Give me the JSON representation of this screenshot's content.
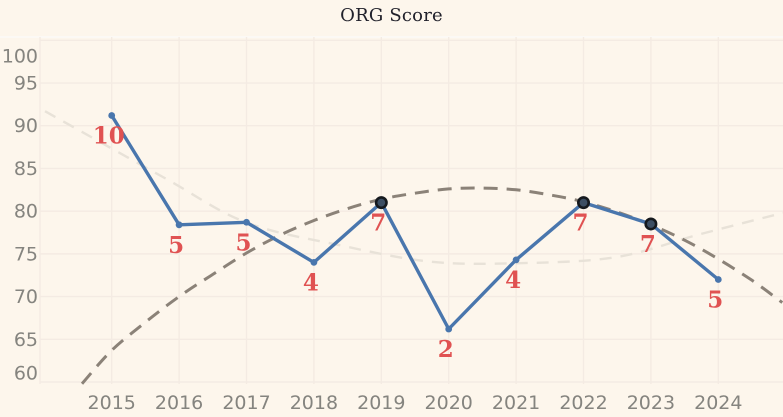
{
  "app": {
    "background_color": "#fdf6ec",
    "plot_border_color": "#fcf9f5",
    "grid_color": "#f4ebe3"
  },
  "header": {
    "title": "ORG Score",
    "title_color": "#21212b"
  },
  "chart_data": {
    "type": "line",
    "title": "ORG Score",
    "xlabel": "",
    "ylabel": "",
    "categories": [
      2015,
      2016,
      2017,
      2018,
      2019,
      2020,
      2021,
      2022,
      2023,
      2024
    ],
    "yticks": [
      100,
      95,
      90,
      85,
      80,
      75,
      70,
      65,
      60
    ],
    "ylim": [
      60,
      100
    ],
    "grid": true,
    "legend_position": "none",
    "axis_label_color": "#85847f",
    "series": [
      {
        "name": "ORG Score",
        "type": "line",
        "color": "#4976ad",
        "values": [
          91.2,
          78.4,
          78.7,
          74.0,
          81.0,
          66.2,
          74.3,
          81.0,
          78.5,
          72.0
        ],
        "point_labels": [
          "10",
          "5",
          "5",
          "4",
          "7",
          "2",
          "4",
          "7",
          "7",
          "5"
        ],
        "point_label_color": "#e05252",
        "highlighted_points": {
          "years": [
            2019,
            2022,
            2023
          ],
          "fill": "#3c4e63",
          "ring": "#15191e"
        }
      },
      {
        "name": "trend-dark-dashed",
        "type": "line",
        "style": "dashed",
        "color": "#8b8278",
        "points": [
          [
            2014.56,
            59.8
          ],
          [
            2015,
            63.7
          ],
          [
            2015.5,
            67.0
          ],
          [
            2016,
            70.0
          ],
          [
            2016.5,
            72.6
          ],
          [
            2017,
            75.1
          ],
          [
            2017.5,
            77.2
          ],
          [
            2018,
            78.9
          ],
          [
            2018.5,
            80.3
          ],
          [
            2019,
            81.4
          ],
          [
            2019.5,
            82.1
          ],
          [
            2020,
            82.6
          ],
          [
            2020.5,
            82.7
          ],
          [
            2021,
            82.5
          ],
          [
            2021.5,
            81.9
          ],
          [
            2022,
            81.1
          ],
          [
            2022.5,
            79.9
          ],
          [
            2023,
            78.4
          ],
          [
            2023.5,
            76.6
          ],
          [
            2024,
            74.4
          ],
          [
            2024.5,
            71.9
          ],
          [
            2024.95,
            69.3
          ]
        ]
      },
      {
        "name": "trend-light-dashed",
        "type": "line",
        "style": "dashed",
        "color": "#e8e2d8",
        "points": [
          [
            2014.01,
            91.7
          ],
          [
            2015.76,
            84.0
          ],
          [
            2016.99,
            78.7
          ],
          [
            2018.39,
            76.0
          ],
          [
            2019.72,
            74.1
          ],
          [
            2020.98,
            73.9
          ],
          [
            2022.47,
            74.6
          ],
          [
            2023.73,
            77.3
          ],
          [
            2024.96,
            79.8
          ]
        ]
      }
    ]
  }
}
